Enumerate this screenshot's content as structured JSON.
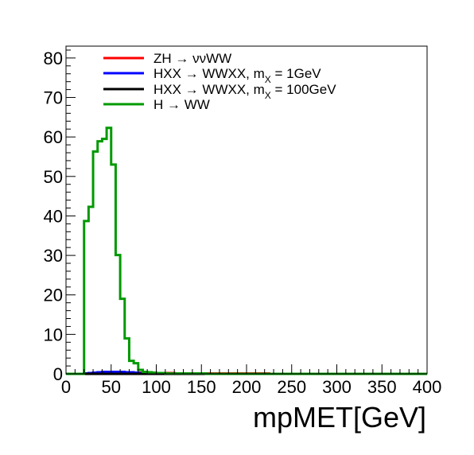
{
  "chart_data": {
    "type": "line",
    "xlabel": "mpMET[GeV]",
    "ylabel": "",
    "xlim": [
      0,
      400
    ],
    "ylim": [
      0,
      83
    ],
    "x_ticks": [
      0,
      50,
      100,
      150,
      200,
      250,
      300,
      350,
      400
    ],
    "y_ticks": [
      0,
      10,
      20,
      30,
      40,
      50,
      60,
      70,
      80
    ],
    "bin_width": 5,
    "grid": false,
    "legend_position": "top-left",
    "series": [
      {
        "name_parts": [
          "ZH → ννWW"
        ],
        "color": "#ff0000",
        "values": [
          0,
          0,
          0,
          0,
          0,
          0.1,
          0.2,
          0.3,
          0.4,
          0.4,
          0.4,
          0.4,
          0.4,
          0.3,
          0.3,
          0.3,
          0.3,
          0.2,
          0.2,
          0.2,
          0.2,
          0.2,
          0.2,
          0.2,
          0.1,
          0.1,
          0.1,
          0.1,
          0.1,
          0.1,
          0.1,
          0.1,
          0.1,
          0.1,
          0.1,
          0.1,
          0.1,
          0.1,
          0.1,
          0.1,
          0.1,
          0.1,
          0.1,
          0.1,
          0.1,
          0,
          0,
          0,
          0,
          0,
          0,
          0,
          0,
          0,
          0,
          0,
          0,
          0,
          0,
          0,
          0,
          0,
          0,
          0,
          0,
          0,
          0,
          0,
          0,
          0,
          0,
          0,
          0,
          0,
          0,
          0,
          0,
          0,
          0,
          0
        ]
      },
      {
        "name_parts": [
          "HXX → WWXX, m",
          "X",
          " = 1GeV"
        ],
        "color": "#0000ff",
        "values": [
          0,
          0,
          0,
          0,
          0.1,
          0.2,
          0.3,
          0.4,
          0.5,
          0.5,
          0.5,
          0.5,
          0.5,
          0.4,
          0.4,
          0.3,
          0.2,
          0.1,
          0.1,
          0.1,
          0,
          0,
          0,
          0,
          0,
          0,
          0,
          0,
          0,
          0,
          0,
          0,
          0,
          0,
          0,
          0,
          0,
          0,
          0,
          0,
          0,
          0,
          0,
          0,
          0,
          0,
          0,
          0,
          0,
          0,
          0,
          0,
          0,
          0,
          0,
          0,
          0,
          0,
          0,
          0,
          0,
          0,
          0,
          0,
          0,
          0,
          0,
          0,
          0,
          0,
          0,
          0,
          0,
          0,
          0,
          0,
          0,
          0,
          0,
          0
        ]
      },
      {
        "name_parts": [
          "HXX → WWXX, m",
          "X",
          " = 100GeV"
        ],
        "color": "#000000",
        "values": [
          0,
          0,
          0,
          0,
          0,
          0,
          0,
          0,
          0,
          0,
          0,
          0,
          0,
          0,
          0,
          0,
          0,
          0,
          0,
          0,
          0,
          0,
          0,
          0,
          0,
          0,
          0,
          0,
          0,
          0,
          0,
          0,
          0,
          0,
          0,
          0,
          0,
          0,
          0,
          0,
          0,
          0,
          0,
          0,
          0,
          0,
          0,
          0,
          0,
          0,
          0,
          0,
          0,
          0,
          0,
          0,
          0,
          0,
          0,
          0,
          0,
          0,
          0,
          0,
          0,
          0,
          0,
          0,
          0,
          0,
          0,
          0,
          0,
          0,
          0,
          0,
          0,
          0,
          0,
          0
        ]
      },
      {
        "name_parts": [
          "H → WW"
        ],
        "color": "#009900",
        "values": [
          0,
          0,
          0,
          0,
          38.7,
          42.3,
          56.3,
          58.9,
          59.5,
          62.3,
          53.0,
          30.1,
          19.0,
          9.0,
          3.3,
          2.7,
          1.0,
          0.5,
          0.4,
          0.3,
          0.2,
          0.2,
          0.1,
          0.1,
          0.1,
          0.1,
          0.1,
          0.1,
          0.1,
          0.1,
          0.1,
          0,
          0,
          0,
          0,
          0,
          0,
          0,
          0,
          0,
          0,
          0,
          0,
          0,
          0,
          0,
          0,
          0,
          0,
          0,
          0,
          0,
          0,
          0,
          0,
          0,
          0,
          0,
          0,
          0,
          0,
          0,
          0,
          0,
          0,
          0,
          0,
          0,
          0,
          0,
          0,
          0,
          0,
          0,
          0,
          0,
          0,
          0,
          0,
          0
        ]
      }
    ]
  }
}
